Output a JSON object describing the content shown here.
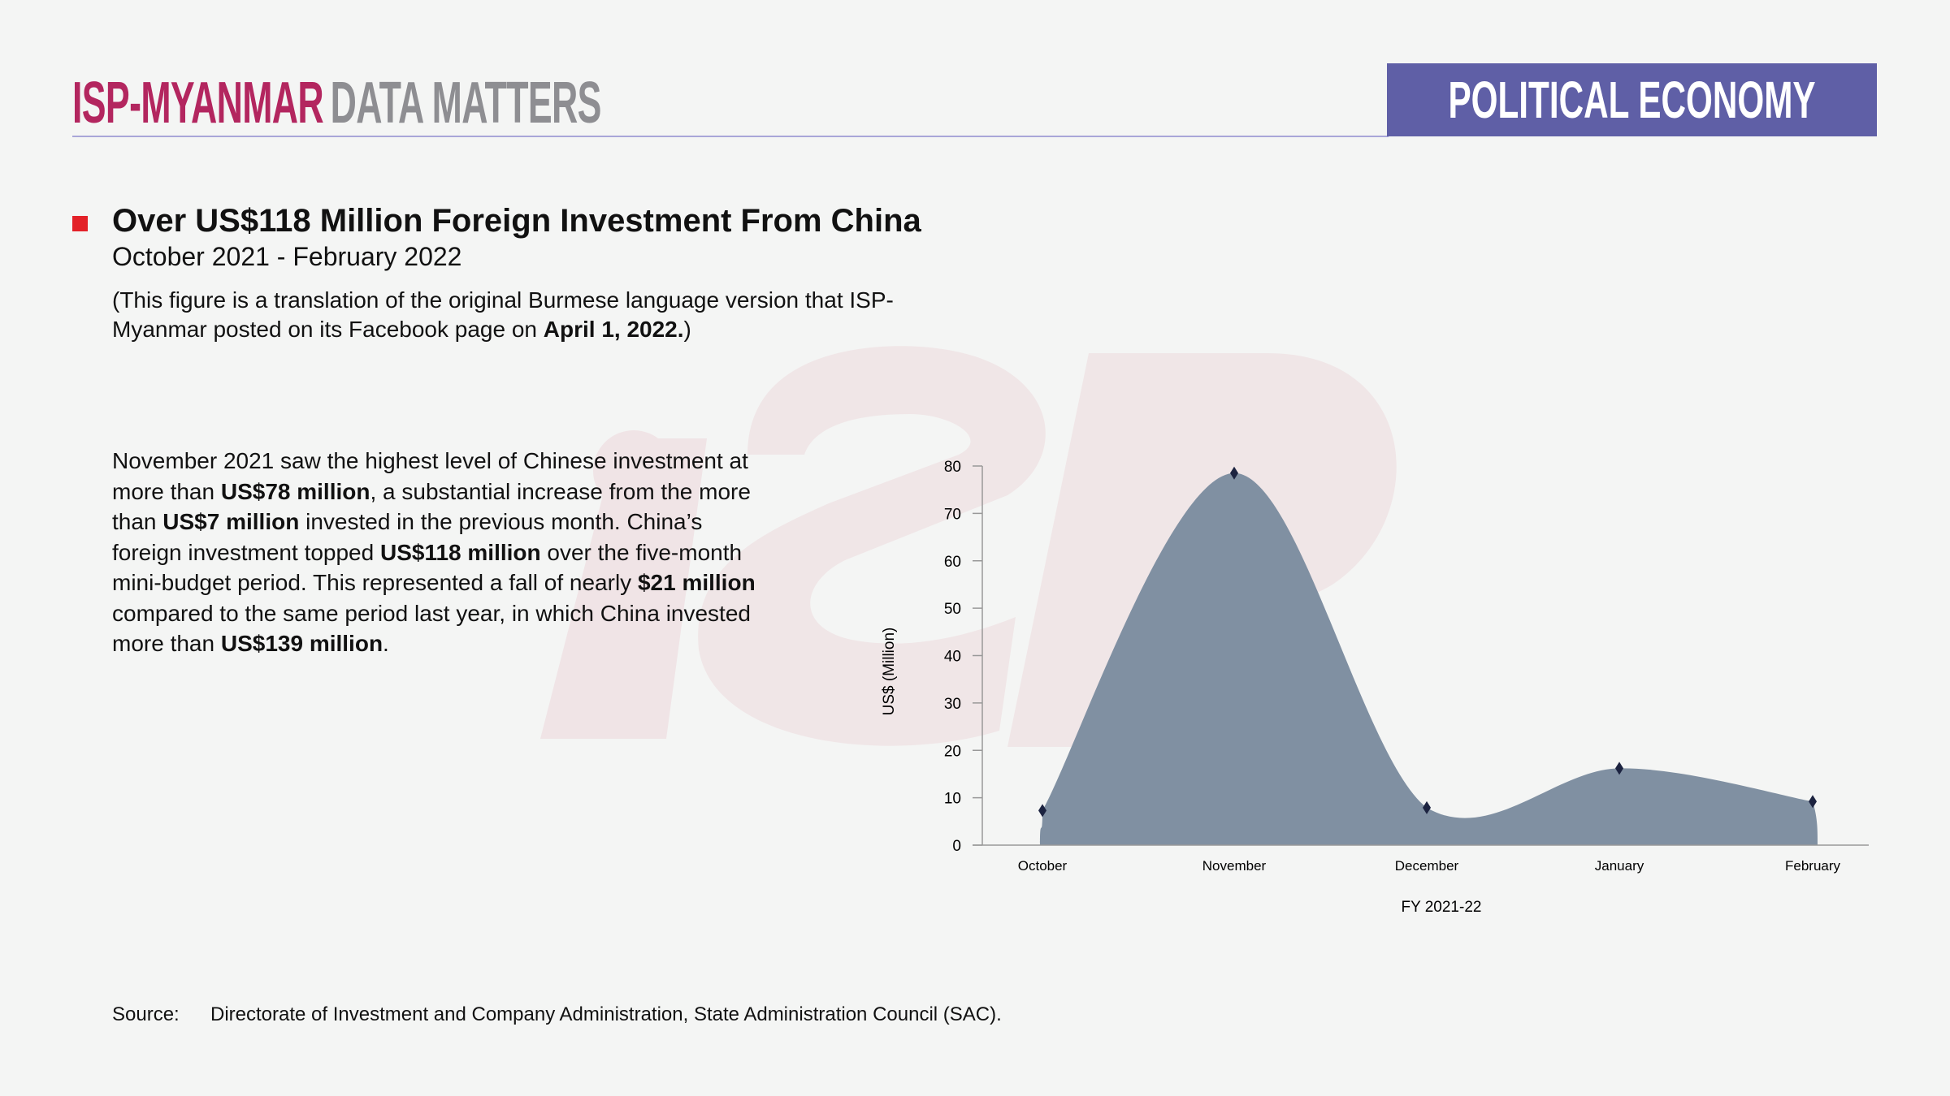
{
  "header": {
    "brand": "ISP-MYANMAR",
    "brand_suffix": "DATA MATTERS",
    "section_badge": "POLITICAL ECONOMY"
  },
  "title": "Over US$118 Million Foreign Investment From China",
  "subtitle": "October 2021 - February 2022",
  "note": {
    "text": "(This figure is a translation of the original Burmese language version that ISP-Myanmar posted on its Facebook page on ",
    "date": "April 1, 2022.",
    "close": ")"
  },
  "paragraph": {
    "p1": "November 2021 saw the highest level of Chinese investment at more than ",
    "b1": "US$78 million",
    "p2": ", a substantial increase from the more than ",
    "b2": "US$7 million",
    "p3": " invested in the previous month. China’s foreign investment topped ",
    "b3": "US$118 million",
    "p4": " over the five-month mini-budget period. This represented a fall of nearly ",
    "b4": "$21 million",
    "p5": " compared to the same period last year, in which China invested more than ",
    "b5": "US$139 million",
    "p6": "."
  },
  "source": {
    "label": "Source:",
    "text": "Directorate of Investment and Company Administration, State Administration Council (SAC)."
  },
  "colors": {
    "area": "#8090a2",
    "marker": "#1c2340",
    "brand": "#b3265f",
    "badge": "#5f5fa6",
    "bullet": "#e32128"
  },
  "chart_data": {
    "type": "area",
    "categories": [
      "October",
      "November",
      "December",
      "January",
      "February"
    ],
    "values": [
      7.3,
      78.5,
      7.9,
      16.2,
      9.2
    ],
    "xlabel": "FY 2021-22",
    "ylabel": "US$ (Million)",
    "ylim": [
      0,
      80
    ],
    "yticks": [
      "0",
      "10",
      "20",
      "30",
      "40",
      "50",
      "60",
      "70",
      "80"
    ],
    "grid": false
  }
}
